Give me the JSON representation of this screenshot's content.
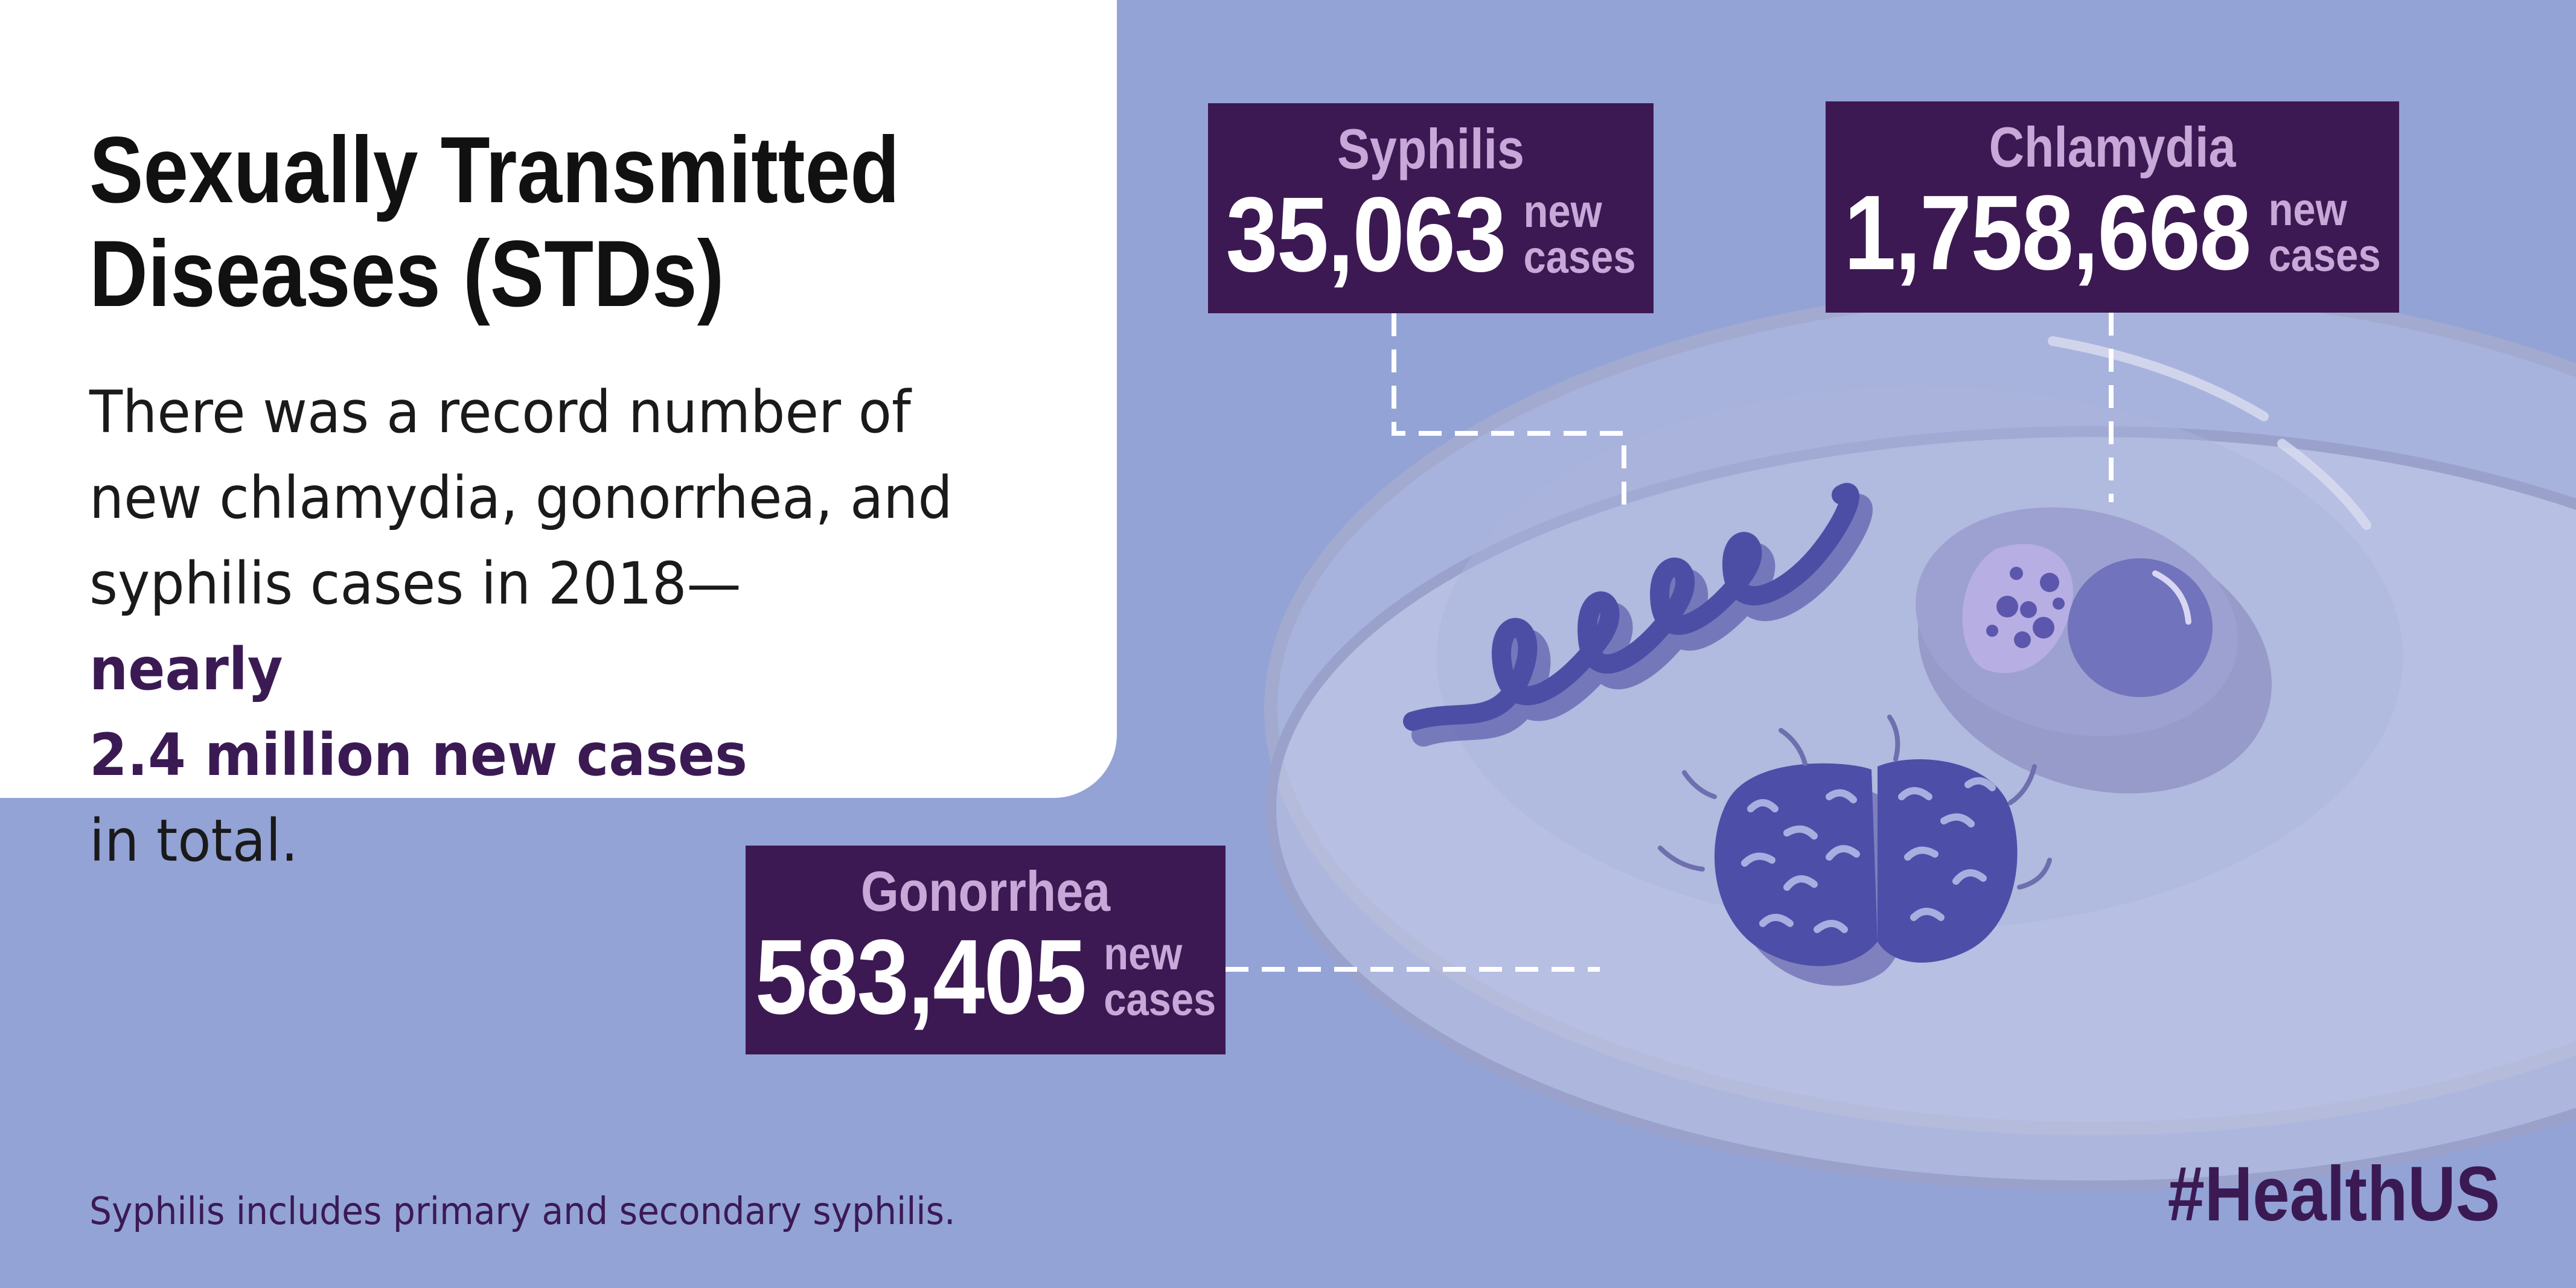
{
  "heading": {
    "line1": "Sexually Transmitted",
    "line2": "Diseases (STDs)"
  },
  "body": {
    "line1": "There was a record number of",
    "line2": "new chlamydia, gonorrhea, and",
    "line3_prefix": "syphilis cases in 2018—",
    "line3_highlight": "nearly",
    "line4_highlight": "2.4 million new cases",
    "line4_suffix": " in total."
  },
  "stats": {
    "syphilis": {
      "name": "Syphilis",
      "value": "35,063",
      "unit_line1": "new",
      "unit_line2": "cases"
    },
    "chlamydia": {
      "name": "Chlamydia",
      "value": "1,758,668",
      "unit_line1": "new",
      "unit_line2": "cases"
    },
    "gonorrhea": {
      "name": "Gonorrhea",
      "value": "583,405",
      "unit_line1": "new",
      "unit_line2": "cases"
    }
  },
  "footnote": "Syphilis includes primary and secondary syphilis.",
  "hashtag": "#HealthUS",
  "colors": {
    "background": "#93a3d6",
    "panel": "#ffffff",
    "box": "#3c1953",
    "box_label": "#c7a8d8",
    "highlight": "#3b1a54"
  }
}
